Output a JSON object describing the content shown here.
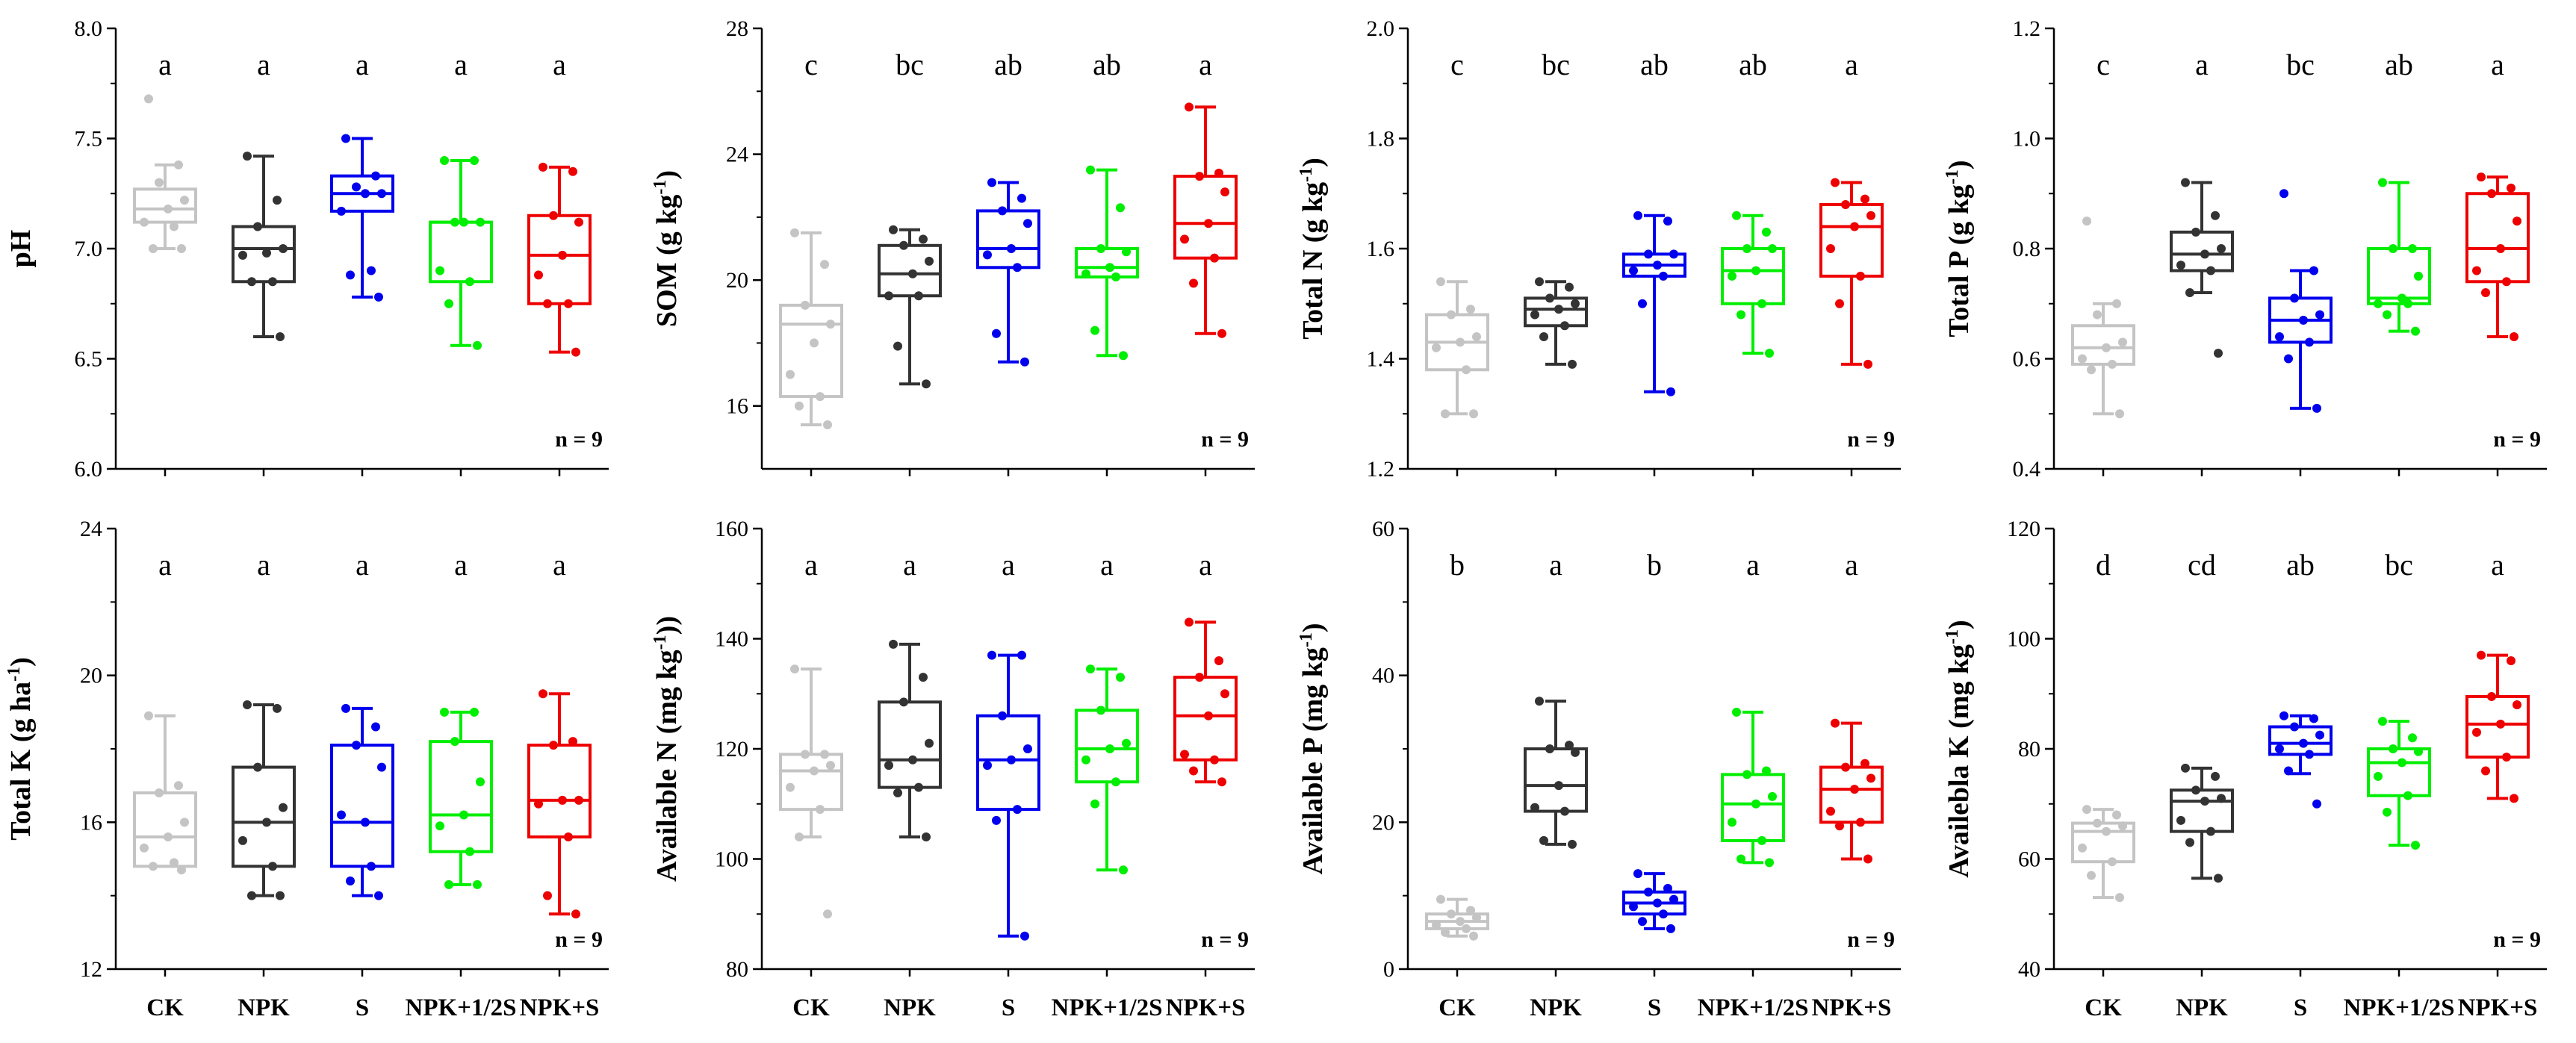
{
  "chart_data": [
    {
      "type": "box",
      "ylabel": "pH",
      "ylabel_sup": "",
      "ylabel_tail": "",
      "ylim": [
        6.0,
        8.0
      ],
      "yticks": [
        "6.0",
        "6.5",
        "7.0",
        "7.5",
        "8.0"
      ],
      "categories": [
        "CK",
        "NPK",
        "S",
        "NPK+1/2S",
        "NPK+S"
      ],
      "letters": [
        "a",
        "a",
        "a",
        "a",
        "a"
      ],
      "n_label": "n = 9",
      "boxes": [
        {
          "min": 7.0,
          "q1": 7.12,
          "median": 7.18,
          "q3": 7.27,
          "max": 7.38,
          "points": [
            7.68,
            7.38,
            7.3,
            7.22,
            7.18,
            7.12,
            7.1,
            7.0,
            7.0
          ]
        },
        {
          "min": 6.6,
          "q1": 6.85,
          "median": 7.0,
          "q3": 7.1,
          "max": 7.42,
          "points": [
            7.42,
            7.22,
            7.1,
            7.0,
            6.98,
            6.97,
            6.85,
            6.85,
            6.6
          ]
        },
        {
          "min": 6.78,
          "q1": 7.17,
          "median": 7.25,
          "q3": 7.33,
          "max": 7.5,
          "points": [
            7.5,
            7.33,
            7.28,
            7.25,
            7.25,
            7.17,
            6.9,
            6.88,
            6.78
          ]
        },
        {
          "min": 6.56,
          "q1": 6.85,
          "median": 7.12,
          "q3": 7.12,
          "max": 7.4,
          "points": [
            7.4,
            7.4,
            7.12,
            7.12,
            7.12,
            6.9,
            6.85,
            6.75,
            6.56
          ]
        },
        {
          "min": 6.53,
          "q1": 6.75,
          "median": 6.97,
          "q3": 7.15,
          "max": 7.37,
          "points": [
            7.37,
            7.35,
            7.15,
            7.12,
            6.97,
            6.88,
            6.75,
            6.75,
            6.53
          ]
        }
      ]
    },
    {
      "type": "box",
      "ylabel": "SOM (g kg",
      "ylabel_sup": "-1",
      "ylabel_tail": ")",
      "ylim": [
        14,
        28
      ],
      "yticks": [
        "16",
        "20",
        "24",
        "28"
      ],
      "categories": [
        "CK",
        "NPK",
        "S",
        "NPK+1/2S",
        "NPK+S"
      ],
      "letters": [
        "c",
        "bc",
        "ab",
        "ab",
        "a"
      ],
      "n_label": "n = 9",
      "boxes": [
        {
          "min": 15.4,
          "q1": 16.3,
          "median": 18.6,
          "q3": 19.2,
          "max": 21.5,
          "points": [
            21.5,
            20.5,
            19.2,
            18.6,
            18.0,
            17.0,
            16.3,
            16.0,
            15.4
          ]
        },
        {
          "min": 16.7,
          "q1": 19.5,
          "median": 20.2,
          "q3": 21.1,
          "max": 21.6,
          "points": [
            21.6,
            21.3,
            21.1,
            20.6,
            20.2,
            19.5,
            19.5,
            17.9,
            16.7
          ]
        },
        {
          "min": 17.4,
          "q1": 20.4,
          "median": 21.0,
          "q3": 22.2,
          "max": 23.1,
          "points": [
            23.1,
            22.6,
            22.2,
            21.8,
            21.0,
            20.8,
            20.4,
            18.3,
            17.4
          ]
        },
        {
          "min": 17.6,
          "q1": 20.1,
          "median": 20.4,
          "q3": 21.0,
          "max": 23.5,
          "points": [
            23.5,
            22.3,
            21.0,
            20.9,
            20.4,
            20.2,
            20.1,
            18.4,
            17.6
          ]
        },
        {
          "min": 18.3,
          "q1": 20.7,
          "median": 21.8,
          "q3": 23.3,
          "max": 25.5,
          "points": [
            25.5,
            23.4,
            23.3,
            22.8,
            21.8,
            21.3,
            20.7,
            19.9,
            18.3
          ]
        }
      ]
    },
    {
      "type": "box",
      "ylabel": "Total N (g kg",
      "ylabel_sup": "-1",
      "ylabel_tail": ")",
      "ylim": [
        1.2,
        2.0
      ],
      "yticks": [
        "1.2",
        "1.4",
        "1.6",
        "1.8",
        "2.0"
      ],
      "categories": [
        "CK",
        "NPK",
        "S",
        "NPK+1/2S",
        "NPK+S"
      ],
      "letters": [
        "c",
        "bc",
        "ab",
        "ab",
        "a"
      ],
      "n_label": "n = 9",
      "boxes": [
        {
          "min": 1.3,
          "q1": 1.38,
          "median": 1.43,
          "q3": 1.48,
          "max": 1.54,
          "points": [
            1.54,
            1.49,
            1.48,
            1.44,
            1.43,
            1.42,
            1.38,
            1.3,
            1.3
          ]
        },
        {
          "min": 1.39,
          "q1": 1.46,
          "median": 1.49,
          "q3": 1.51,
          "max": 1.54,
          "points": [
            1.54,
            1.53,
            1.51,
            1.5,
            1.49,
            1.48,
            1.46,
            1.44,
            1.39
          ]
        },
        {
          "min": 1.34,
          "q1": 1.55,
          "median": 1.57,
          "q3": 1.59,
          "max": 1.66,
          "points": [
            1.66,
            1.65,
            1.59,
            1.59,
            1.57,
            1.56,
            1.55,
            1.5,
            1.34
          ]
        },
        {
          "min": 1.41,
          "q1": 1.5,
          "median": 1.56,
          "q3": 1.6,
          "max": 1.66,
          "points": [
            1.66,
            1.63,
            1.6,
            1.6,
            1.56,
            1.55,
            1.5,
            1.48,
            1.41
          ]
        },
        {
          "min": 1.39,
          "q1": 1.55,
          "median": 1.64,
          "q3": 1.68,
          "max": 1.72,
          "points": [
            1.72,
            1.69,
            1.68,
            1.66,
            1.64,
            1.6,
            1.55,
            1.5,
            1.39
          ]
        }
      ]
    },
    {
      "type": "box",
      "ylabel": "Total P (g kg",
      "ylabel_sup": "-1",
      "ylabel_tail": ")",
      "ylim": [
        0.4,
        1.2
      ],
      "yticks": [
        "0.4",
        "0.6",
        "0.8",
        "1.0",
        "1.2"
      ],
      "categories": [
        "CK",
        "NPK",
        "S",
        "NPK+1/2S",
        "NPK+S"
      ],
      "letters": [
        "c",
        "a",
        "bc",
        "ab",
        "a"
      ],
      "n_label": "n = 9",
      "boxes": [
        {
          "min": 0.5,
          "q1": 0.59,
          "median": 0.62,
          "q3": 0.66,
          "max": 0.7,
          "points": [
            0.85,
            0.7,
            0.68,
            0.63,
            0.62,
            0.6,
            0.59,
            0.58,
            0.5
          ]
        },
        {
          "min": 0.72,
          "q1": 0.76,
          "median": 0.79,
          "q3": 0.83,
          "max": 0.92,
          "points": [
            0.92,
            0.86,
            0.83,
            0.8,
            0.79,
            0.77,
            0.76,
            0.72,
            0.61
          ]
        },
        {
          "min": 0.51,
          "q1": 0.63,
          "median": 0.67,
          "q3": 0.71,
          "max": 0.76,
          "points": [
            0.9,
            0.76,
            0.71,
            0.68,
            0.67,
            0.64,
            0.63,
            0.6,
            0.51
          ]
        },
        {
          "min": 0.65,
          "q1": 0.7,
          "median": 0.71,
          "q3": 0.8,
          "max": 0.92,
          "points": [
            0.92,
            0.8,
            0.8,
            0.75,
            0.71,
            0.7,
            0.7,
            0.68,
            0.65
          ]
        },
        {
          "min": 0.64,
          "q1": 0.74,
          "median": 0.8,
          "q3": 0.9,
          "max": 0.93,
          "points": [
            0.93,
            0.91,
            0.9,
            0.85,
            0.8,
            0.76,
            0.74,
            0.72,
            0.64
          ]
        }
      ]
    },
    {
      "type": "box",
      "ylabel": "Total K (g ha",
      "ylabel_sup": "-1",
      "ylabel_tail": ")",
      "ylim": [
        12,
        24
      ],
      "yticks": [
        "12",
        "16",
        "20",
        "24"
      ],
      "categories": [
        "CK",
        "NPK",
        "S",
        "NPK+1/2S",
        "NPK+S"
      ],
      "letters": [
        "a",
        "a",
        "a",
        "a",
        "a"
      ],
      "n_label": "n = 9",
      "boxes": [
        {
          "min": 14.8,
          "q1": 14.8,
          "median": 15.6,
          "q3": 16.8,
          "max": 18.9,
          "points": [
            18.9,
            17.0,
            16.8,
            16.0,
            15.6,
            15.3,
            14.9,
            14.8,
            14.7
          ]
        },
        {
          "min": 14.0,
          "q1": 14.8,
          "median": 16.0,
          "q3": 17.5,
          "max": 19.2,
          "points": [
            19.2,
            19.1,
            17.5,
            16.4,
            16.0,
            15.5,
            14.8,
            14.0,
            14.0
          ]
        },
        {
          "min": 14.0,
          "q1": 14.8,
          "median": 16.0,
          "q3": 18.1,
          "max": 19.1,
          "points": [
            19.1,
            18.6,
            18.1,
            17.5,
            16.0,
            16.2,
            14.8,
            14.4,
            14.0
          ]
        },
        {
          "min": 14.3,
          "q1": 15.2,
          "median": 16.2,
          "q3": 18.2,
          "max": 19.0,
          "points": [
            19.0,
            19.0,
            18.2,
            17.1,
            16.2,
            15.9,
            15.2,
            14.3,
            14.3
          ]
        },
        {
          "min": 13.5,
          "q1": 15.6,
          "median": 16.6,
          "q3": 18.1,
          "max": 19.5,
          "points": [
            19.5,
            18.2,
            18.1,
            16.6,
            16.6,
            16.5,
            15.6,
            14.0,
            13.5
          ]
        }
      ]
    },
    {
      "type": "box",
      "ylabel": "Available N (mg kg",
      "ylabel_sup": "-1",
      "ylabel_tail": "))",
      "ylim": [
        80,
        160
      ],
      "yticks": [
        "80",
        "100",
        "120",
        "140",
        "160"
      ],
      "categories": [
        "CK",
        "NPK",
        "S",
        "NPK+1/2S",
        "NPK+S"
      ],
      "letters": [
        "a",
        "a",
        "a",
        "a",
        "a"
      ],
      "n_label": "n = 9",
      "boxes": [
        {
          "min": 104,
          "q1": 109,
          "median": 116,
          "q3": 119,
          "max": 134.5,
          "points": [
            134.5,
            119,
            119,
            117,
            116,
            113,
            109,
            104,
            90
          ]
        },
        {
          "min": 104,
          "q1": 113,
          "median": 118,
          "q3": 128.5,
          "max": 139,
          "points": [
            139,
            133,
            128.5,
            121,
            118,
            117,
            113,
            112,
            104
          ]
        },
        {
          "min": 86,
          "q1": 109,
          "median": 118,
          "q3": 126,
          "max": 137,
          "points": [
            137,
            137,
            126,
            120,
            118,
            117,
            109,
            107,
            86
          ]
        },
        {
          "min": 98,
          "q1": 114,
          "median": 120,
          "q3": 127,
          "max": 134.5,
          "points": [
            134.5,
            133,
            127,
            121,
            120,
            118,
            114,
            110,
            98
          ]
        },
        {
          "min": 114,
          "q1": 118,
          "median": 126,
          "q3": 133,
          "max": 143,
          "points": [
            143,
            136,
            133,
            130,
            126,
            119,
            118,
            116,
            114
          ]
        }
      ]
    },
    {
      "type": "box",
      "ylabel": "Available P (mg kg",
      "ylabel_sup": "-1",
      "ylabel_tail": ")",
      "ylim": [
        0,
        60
      ],
      "yticks": [
        "0",
        "20",
        "40",
        "60"
      ],
      "categories": [
        "CK",
        "NPK",
        "S",
        "NPK+1/2S",
        "NPK+S"
      ],
      "letters": [
        "b",
        "a",
        "b",
        "a",
        "a"
      ],
      "n_label": "n = 9",
      "boxes": [
        {
          "min": 4.5,
          "q1": 5.5,
          "median": 6.5,
          "q3": 7.5,
          "max": 9.5,
          "points": [
            9.5,
            8.0,
            7.5,
            7.0,
            6.5,
            6.0,
            5.5,
            5.0,
            4.5
          ]
        },
        {
          "min": 17,
          "q1": 21.5,
          "median": 25,
          "q3": 30,
          "max": 36.5,
          "points": [
            36.5,
            30.5,
            30,
            29.5,
            25,
            22,
            21.5,
            17.5,
            17
          ]
        },
        {
          "min": 5.5,
          "q1": 7.5,
          "median": 9,
          "q3": 10.5,
          "max": 13,
          "points": [
            13,
            11,
            10.5,
            9.5,
            9,
            8.5,
            7.5,
            6.5,
            5.5
          ]
        },
        {
          "min": 14.5,
          "q1": 17.5,
          "median": 22.5,
          "q3": 26.5,
          "max": 35,
          "points": [
            35,
            27,
            26.5,
            23.5,
            22.5,
            20,
            17.5,
            15,
            14.5
          ]
        },
        {
          "min": 15,
          "q1": 20,
          "median": 24.5,
          "q3": 27.5,
          "max": 33.5,
          "points": [
            33.5,
            28,
            27.5,
            26,
            24.5,
            21.5,
            20,
            19.5,
            15
          ]
        }
      ]
    },
    {
      "type": "box",
      "ylabel": "Availebla K (mg kg",
      "ylabel_sup": "-1",
      "ylabel_tail": ")",
      "ylim": [
        40,
        120
      ],
      "yticks": [
        "40",
        "60",
        "80",
        "100",
        "120"
      ],
      "categories": [
        "CK",
        "NPK",
        "S",
        "NPK+1/2S",
        "NPK+S"
      ],
      "letters": [
        "d",
        "cd",
        "ab",
        "bc",
        "a"
      ],
      "n_label": "n = 9",
      "boxes": [
        {
          "min": 53,
          "q1": 59.5,
          "median": 65,
          "q3": 66.5,
          "max": 69,
          "points": [
            69,
            68,
            66.5,
            66,
            65,
            62,
            59.5,
            57,
            53
          ]
        },
        {
          "min": 56.5,
          "q1": 65,
          "median": 70.5,
          "q3": 72.5,
          "max": 76.5,
          "points": [
            76.5,
            75,
            72.5,
            71,
            70.5,
            67,
            65,
            63,
            56.5
          ]
        },
        {
          "min": 75.5,
          "q1": 79,
          "median": 81,
          "q3": 84,
          "max": 86,
          "points": [
            86,
            85.5,
            84,
            82.5,
            81,
            80,
            79,
            76,
            70
          ]
        },
        {
          "min": 62.5,
          "q1": 71.5,
          "median": 77.5,
          "q3": 80,
          "max": 85,
          "points": [
            85,
            82,
            80,
            79.5,
            77.5,
            75,
            71.5,
            68.5,
            62.5
          ]
        },
        {
          "min": 71,
          "q1": 78.5,
          "median": 84.5,
          "q3": 89.5,
          "max": 97,
          "points": [
            97,
            96,
            89.5,
            88,
            84.5,
            83,
            78.5,
            76,
            71
          ]
        }
      ]
    }
  ],
  "colors": {
    "series": [
      "#c4c4c4",
      "#333333",
      "#0000ee",
      "#00ee00",
      "#ee0000"
    ],
    "axis": "#000000"
  }
}
